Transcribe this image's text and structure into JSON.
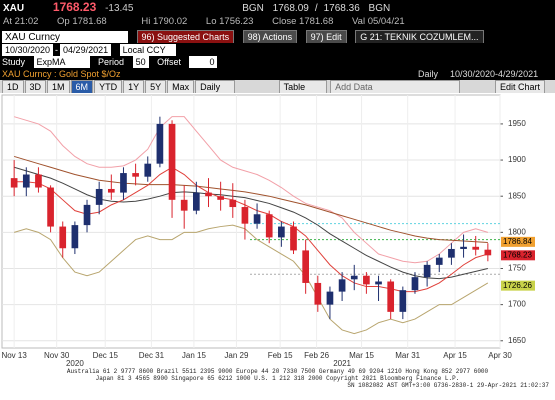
{
  "header": {
    "ticker": "XAU",
    "last": "1768.23",
    "change": "-13.45",
    "src1": "BGN",
    "bid": "1768.09",
    "sep": "/",
    "ask": "1768.36",
    "src2": "BGN",
    "time": "At 21:02",
    "open": "Op 1781.68",
    "high": "Hi 1790.02",
    "low": "Lo 1756.23",
    "close": "Close 1781.68",
    "val": "Val 05/04/21"
  },
  "toolbar": {
    "security": "XAU Curncy",
    "buttons": [
      "96) Suggested Charts",
      "98) Actions",
      "97) Edit"
    ],
    "page": "G 21: TEKNIK COZUMLEM...",
    "start": "10/30/2020",
    "dash": "-",
    "end": "04/29/2021",
    "ccy": "Local CCY",
    "study_label": "Study",
    "study": "ExpMA",
    "period_label": "Period",
    "period": "50",
    "offset_label": "Offset",
    "offset": "0",
    "description": "XAU Curncy : Gold Spot  $/Oz",
    "frequency": "Daily",
    "range": "10/30/2020-4/29/2021",
    "ranges": [
      "1D",
      "3D",
      "1M",
      "6M",
      "YTD",
      "1Y",
      "5Y",
      "Max"
    ],
    "freq_select": "Daily",
    "table": "Table",
    "add_data": "Add Data",
    "edit_chart": "Edit Chart"
  },
  "chart_data": {
    "type": "candlestick",
    "x": [
      0,
      1,
      2,
      3,
      4,
      5,
      6,
      7,
      8,
      9,
      10,
      11,
      12,
      13,
      14,
      15,
      16,
      17,
      18,
      19,
      20,
      21,
      22,
      23,
      24,
      25,
      26,
      27,
      28,
      29,
      30,
      31,
      32,
      33,
      34,
      35,
      36,
      37,
      38,
      39
    ],
    "open": [
      1875,
      1862,
      1880,
      1862,
      1808,
      1778,
      1810,
      1838,
      1860,
      1855,
      1882,
      1877,
      1895,
      1950,
      1845,
      1830,
      1855,
      1850,
      1845,
      1835,
      1812,
      1825,
      1793,
      1808,
      1775,
      1730,
      1700,
      1718,
      1735,
      1740,
      1728,
      1732,
      1690,
      1720,
      1738,
      1755,
      1765,
      1777,
      1780,
      1776
    ],
    "high": [
      1900,
      1890,
      1890,
      1865,
      1815,
      1815,
      1845,
      1870,
      1880,
      1890,
      1895,
      1905,
      1960,
      1955,
      1865,
      1870,
      1875,
      1870,
      1868,
      1845,
      1840,
      1830,
      1815,
      1815,
      1790,
      1740,
      1725,
      1745,
      1755,
      1745,
      1740,
      1735,
      1725,
      1745,
      1760,
      1770,
      1785,
      1797,
      1795,
      1785
    ],
    "low": [
      1850,
      1850,
      1855,
      1800,
      1765,
      1770,
      1800,
      1825,
      1845,
      1845,
      1865,
      1870,
      1890,
      1820,
      1805,
      1825,
      1835,
      1830,
      1820,
      1790,
      1805,
      1785,
      1780,
      1770,
      1715,
      1690,
      1680,
      1705,
      1720,
      1715,
      1705,
      1680,
      1680,
      1715,
      1725,
      1745,
      1755,
      1765,
      1768,
      1760
    ],
    "close": [
      1862,
      1880,
      1862,
      1808,
      1778,
      1810,
      1838,
      1860,
      1855,
      1882,
      1877,
      1895,
      1950,
      1845,
      1830,
      1855,
      1850,
      1845,
      1835,
      1812,
      1825,
      1793,
      1808,
      1775,
      1730,
      1700,
      1718,
      1735,
      1740,
      1728,
      1732,
      1690,
      1720,
      1738,
      1755,
      1765,
      1777,
      1780,
      1776,
      1768.23
    ],
    "up_color": "#1e2f6e",
    "down_color": "#d9232d",
    "series": [
      {
        "color": "#f2a0a8",
        "values": [
          1960,
          1955,
          1950,
          1940,
          1920,
          1905,
          1895,
          1890,
          1890,
          1892,
          1900,
          1915,
          1945,
          1960,
          1960,
          1940,
          1920,
          1900,
          1890,
          1885,
          1880,
          1872,
          1862,
          1850,
          1840,
          1835,
          1830,
          1820,
          1800,
          1785,
          1770,
          1765,
          1760,
          1758,
          1760,
          1770,
          1785,
          1800,
          1805,
          1800
        ]
      },
      {
        "color": "#b8a56e",
        "values": [
          1800,
          1805,
          1800,
          1790,
          1765,
          1745,
          1740,
          1745,
          1760,
          1775,
          1790,
          1795,
          1790,
          1790,
          1800,
          1800,
          1805,
          1808,
          1810,
          1805,
          1790,
          1780,
          1770,
          1760,
          1740,
          1710,
          1680,
          1665,
          1660,
          1665,
          1675,
          1680,
          1675,
          1680,
          1690,
          1700,
          1700,
          1710,
          1720,
          1730
        ]
      },
      {
        "color": "#a0522d",
        "values": [
          1905,
          1900,
          1895,
          1890,
          1885,
          1880,
          1876,
          1872,
          1870,
          1868,
          1867,
          1866,
          1866,
          1866,
          1865,
          1864,
          1862,
          1860,
          1858,
          1856,
          1853,
          1850,
          1846,
          1842,
          1838,
          1833,
          1828,
          1823,
          1818,
          1813,
          1808,
          1803,
          1799,
          1795,
          1792,
          1790,
          1789,
          1788,
          1787,
          1786
        ]
      },
      {
        "color": "#444444",
        "values": [
          1890,
          1885,
          1880,
          1875,
          1868,
          1860,
          1852,
          1846,
          1843,
          1842,
          1843,
          1846,
          1850,
          1855,
          1856,
          1855,
          1853,
          1852,
          1850,
          1848,
          1844,
          1840,
          1834,
          1828,
          1820,
          1810,
          1798,
          1788,
          1778,
          1768,
          1760,
          1752,
          1745,
          1740,
          1737,
          1736,
          1738,
          1742,
          1746,
          1750
        ]
      },
      {
        "color": "#e0403a",
        "values": [
          1870,
          1870,
          1868,
          1860,
          1845,
          1830,
          1825,
          1828,
          1838,
          1845,
          1855,
          1865,
          1880,
          1890,
          1880,
          1865,
          1855,
          1848,
          1845,
          1838,
          1830,
          1825,
          1815,
          1808,
          1795,
          1775,
          1755,
          1740,
          1730,
          1725,
          1725,
          1722,
          1718,
          1718,
          1722,
          1730,
          1742,
          1755,
          1765,
          1770
        ]
      }
    ],
    "hlines": [
      1812,
      1790,
      1742
    ],
    "hline_colors": [
      "#5fd3e0",
      "#3cb44b",
      "#aaaaaa"
    ],
    "price_tags": [
      1786.84,
      1768.23,
      1726.26
    ],
    "price_tag_colors": [
      "#f0a030",
      "#d9232d",
      "#c8d24a"
    ],
    "xlim": [
      -1,
      40
    ],
    "ylim": [
      1640,
      1990
    ],
    "xticks": [
      {
        "value": 0,
        "label": "Nov 13"
      },
      {
        "value": 3.5,
        "label": "Nov 30"
      },
      {
        "value": 7.5,
        "label": "Dec 15"
      },
      {
        "value": 11.3,
        "label": "Dec 31"
      },
      {
        "value": 14.8,
        "label": "Jan 15"
      },
      {
        "value": 18.3,
        "label": "Jan 29"
      },
      {
        "value": 21.9,
        "label": "Feb 15"
      },
      {
        "value": 24.9,
        "label": "Feb 26"
      },
      {
        "value": 28.6,
        "label": "Mar 15"
      },
      {
        "value": 32.4,
        "label": "Mar 31"
      },
      {
        "value": 36.3,
        "label": "Apr 15"
      },
      {
        "value": 40,
        "label": "Apr 30"
      }
    ],
    "year_labels": [
      {
        "value": 5,
        "label": "2020"
      },
      {
        "value": 27,
        "label": "2021"
      }
    ],
    "yticks": [
      1650,
      1700,
      1750,
      1800,
      1850,
      1900,
      1950
    ],
    "grid": true
  },
  "footer": {
    "line1": "Australia 61 2 9777 8600  Brazil 5511 2395 9000  Europe 44 20 7330 7500  Germany 49 69 9204 1210  Hong Kong 852 2977 6000",
    "line2": "Japan 81 3 4565 8900        Singapore 65 6212 1000        U.S. 1 212 318 2000        Copyright 2021 Bloomberg Finance L.P.",
    "line3": "SN 1082082 AST  GMT+3:00 G736-2830-1 29-Apr-2021 21:02:37"
  }
}
